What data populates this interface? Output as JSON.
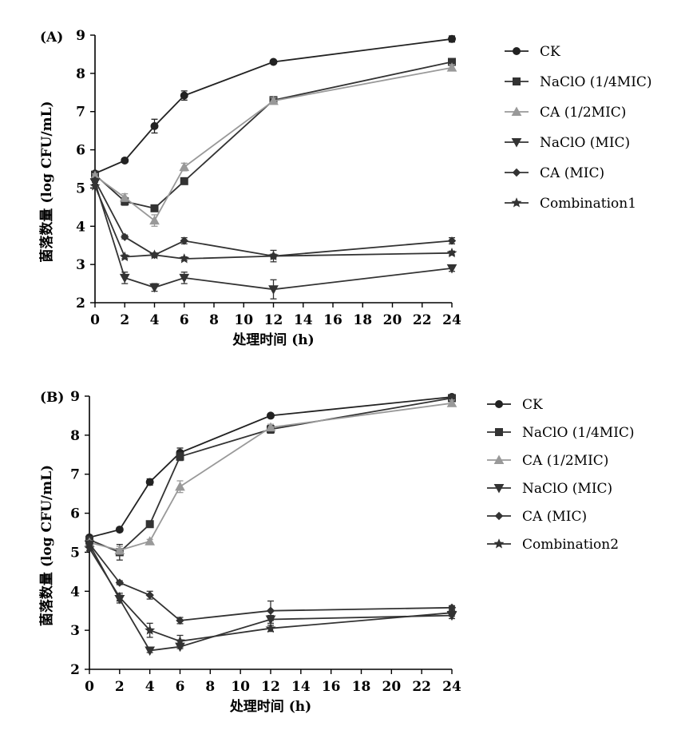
{
  "chart_data": [
    {
      "type": "line",
      "panel_label": "(A)",
      "xlabel": "处理时间 (h)",
      "ylabel": "菌落数量 (log CFU/mL)",
      "xlim": [
        0,
        24
      ],
      "ylim": [
        2,
        9
      ],
      "xticks": [
        "0",
        "2",
        "4",
        "6",
        "8",
        "10",
        "12",
        "14",
        "16",
        "18",
        "20",
        "22",
        "24"
      ],
      "yticks": [
        "2",
        "3",
        "4",
        "5",
        "6",
        "7",
        "8",
        "9"
      ],
      "grid": false,
      "legend_position": "right",
      "x": [
        0,
        2,
        4,
        6,
        12,
        24
      ],
      "series": [
        {
          "name": "CK",
          "marker": "circle",
          "color": "#222222",
          "values": [
            5.38,
            5.72,
            6.62,
            7.42,
            8.3,
            8.9
          ],
          "errors": [
            0.05,
            0.05,
            0.18,
            0.12,
            0.05,
            0.08
          ]
        },
        {
          "name": "NaClO (1/4MIC)",
          "marker": "square",
          "color": "#333333",
          "values": [
            5.35,
            4.65,
            4.47,
            5.18,
            7.3,
            8.3
          ],
          "errors": [
            0.05,
            0.1,
            0.08,
            0.08,
            0.08,
            0.05
          ]
        },
        {
          "name": "CA (1/2MIC)",
          "marker": "triangle-up",
          "color": "#999999",
          "values": [
            5.32,
            4.75,
            4.15,
            5.55,
            7.28,
            8.15
          ],
          "errors": [
            0.05,
            0.1,
            0.15,
            0.1,
            0.08,
            0.08
          ]
        },
        {
          "name": "NaClO (MIC)",
          "marker": "triangle-down",
          "color": "#333333",
          "values": [
            5.15,
            2.65,
            2.4,
            2.65,
            2.35,
            2.9
          ],
          "errors": [
            0.05,
            0.15,
            0.1,
            0.15,
            0.25,
            0.08
          ]
        },
        {
          "name": "CA (MIC)",
          "marker": "diamond",
          "color": "#333333",
          "values": [
            5.2,
            3.72,
            3.25,
            3.62,
            3.22,
            3.62
          ],
          "errors": [
            0.05,
            0.05,
            0.05,
            0.08,
            0.15,
            0.08
          ]
        },
        {
          "name": "Combination1",
          "marker": "star",
          "color": "#333333",
          "values": [
            5.05,
            3.2,
            3.25,
            3.15,
            3.22,
            3.3
          ],
          "errors": [
            0.05,
            0.05,
            0.05,
            0.05,
            0.05,
            0.05
          ]
        }
      ]
    },
    {
      "type": "line",
      "panel_label": "(B)",
      "xlabel": "处理时间 (h)",
      "ylabel": "菌落数量 (log CFU/mL)",
      "xlim": [
        0,
        24
      ],
      "ylim": [
        2,
        9
      ],
      "xticks": [
        "0",
        "2",
        "4",
        "6",
        "8",
        "10",
        "12",
        "14",
        "16",
        "18",
        "20",
        "22",
        "24"
      ],
      "yticks": [
        "2",
        "3",
        "4",
        "5",
        "6",
        "7",
        "8",
        "9"
      ],
      "grid": false,
      "legend_position": "right",
      "x": [
        0,
        2,
        4,
        6,
        12,
        24
      ],
      "series": [
        {
          "name": "CK",
          "marker": "circle",
          "color": "#222222",
          "values": [
            5.38,
            5.58,
            6.8,
            7.55,
            8.5,
            8.98
          ],
          "errors": [
            0.05,
            0.05,
            0.08,
            0.12,
            0.05,
            0.05
          ]
        },
        {
          "name": "NaClO (1/4MIC)",
          "marker": "square",
          "color": "#333333",
          "values": [
            5.32,
            5.0,
            5.72,
            7.45,
            8.15,
            8.95
          ],
          "errors": [
            0.05,
            0.2,
            0.05,
            0.1,
            0.1,
            0.08
          ]
        },
        {
          "name": "CA (1/2MIC)",
          "marker": "triangle-up",
          "color": "#999999",
          "values": [
            5.25,
            5.05,
            5.28,
            6.68,
            8.2,
            8.82
          ],
          "errors": [
            0.05,
            0.1,
            0.05,
            0.15,
            0.08,
            0.08
          ]
        },
        {
          "name": "NaClO (MIC)",
          "marker": "triangle-down",
          "color": "#333333",
          "values": [
            5.2,
            3.8,
            2.48,
            2.58,
            3.28,
            3.38
          ],
          "errors": [
            0.05,
            0.1,
            0.05,
            0.05,
            0.1,
            0.08
          ]
        },
        {
          "name": "CA (MIC)",
          "marker": "diamond",
          "color": "#333333",
          "values": [
            5.22,
            4.22,
            3.9,
            3.25,
            3.5,
            3.58
          ],
          "errors": [
            0.05,
            0.05,
            0.1,
            0.08,
            0.25,
            0.05
          ]
        },
        {
          "name": "Combination2",
          "marker": "star",
          "color": "#333333",
          "values": [
            5.1,
            3.85,
            3.0,
            2.72,
            3.05,
            3.45
          ],
          "errors": [
            0.05,
            0.1,
            0.18,
            0.15,
            0.08,
            0.05
          ]
        }
      ]
    }
  ]
}
